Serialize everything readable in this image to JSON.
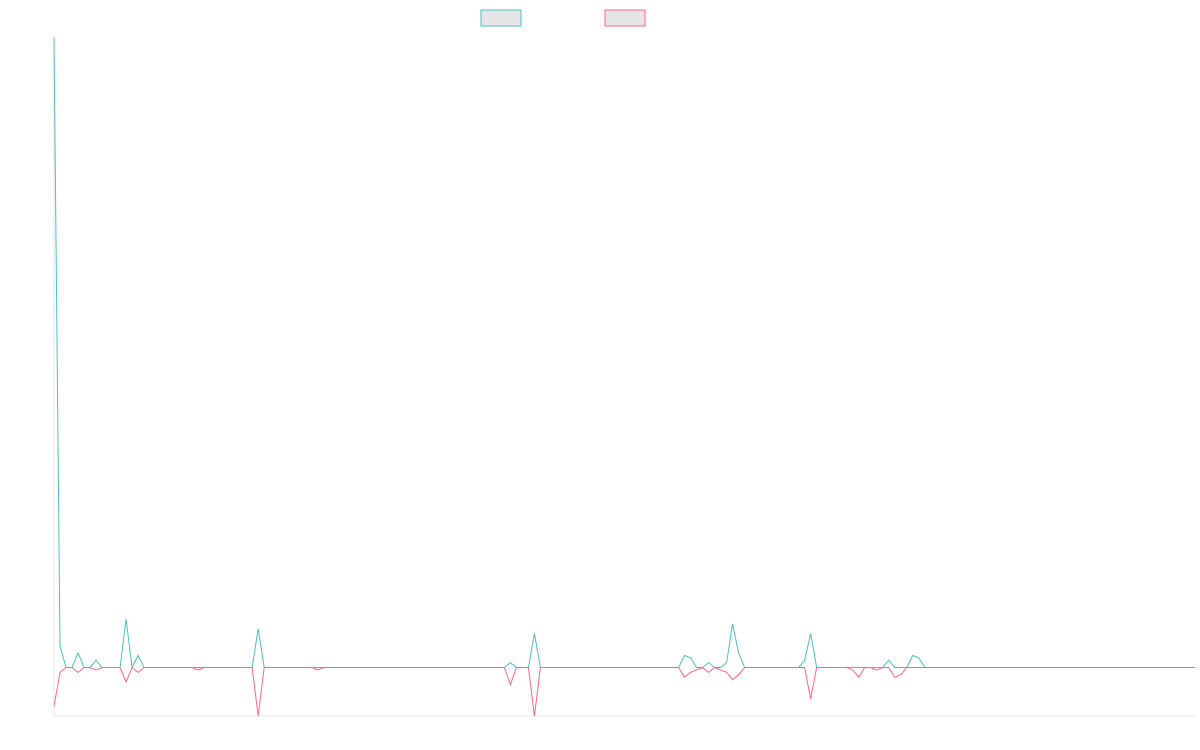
{
  "chart_data": {
    "type": "line",
    "title": "",
    "xlabel": "",
    "ylabel": "",
    "grid": false,
    "legend": "top-center",
    "ylim": [
      -20,
      260
    ],
    "series": [
      {
        "name": "",
        "color": "#4bc0c0",
        "values": [
          260,
          9,
          0,
          0,
          6,
          0,
          0,
          3,
          0,
          0,
          0,
          0,
          20,
          0,
          5,
          0,
          0,
          0,
          0,
          0,
          0,
          0,
          0,
          0,
          0,
          0,
          0,
          0,
          0,
          0,
          0,
          0,
          0,
          0,
          16,
          0,
          0,
          0,
          0,
          0,
          0,
          0,
          0,
          0,
          0,
          0,
          0,
          0,
          0,
          0,
          0,
          0,
          0,
          0,
          0,
          0,
          0,
          0,
          0,
          0,
          0,
          0,
          0,
          0,
          0,
          0,
          0,
          0,
          0,
          0,
          0,
          0,
          0,
          0,
          0,
          0,
          2,
          0,
          0,
          0,
          14,
          0,
          0,
          0,
          0,
          0,
          0,
          0,
          0,
          0,
          0,
          0,
          0,
          0,
          0,
          0,
          0,
          0,
          0,
          0,
          0,
          0,
          0,
          0,
          0,
          5,
          4,
          0,
          0,
          2,
          0,
          0,
          2,
          18,
          6,
          0,
          0,
          0,
          0,
          0,
          0,
          0,
          0,
          0,
          0,
          3,
          14,
          0,
          0,
          0,
          0,
          0,
          0,
          0,
          0,
          0,
          0,
          0,
          0,
          3,
          0,
          0,
          0,
          5,
          4,
          0,
          0,
          0,
          0,
          0,
          0,
          0,
          0,
          0,
          0,
          0,
          0,
          0,
          0,
          0,
          0,
          0,
          0,
          0,
          0,
          0,
          0,
          0,
          0,
          0,
          0,
          0,
          0,
          0,
          0,
          0,
          0,
          0,
          0,
          0,
          0,
          0,
          0,
          0,
          0,
          0,
          0,
          0,
          0,
          0,
          0
        ]
      },
      {
        "name": "",
        "color": "#ff6384",
        "values": [
          -16,
          -2,
          0,
          0,
          -2,
          0,
          0,
          -1,
          0,
          0,
          0,
          0,
          -6,
          0,
          -2,
          0,
          0,
          0,
          0,
          0,
          0,
          0,
          0,
          0,
          -1,
          0,
          0,
          0,
          0,
          0,
          0,
          0,
          0,
          0,
          -20,
          0,
          0,
          0,
          0,
          0,
          0,
          0,
          0,
          0,
          -1,
          0,
          0,
          0,
          0,
          0,
          0,
          0,
          0,
          0,
          0,
          0,
          0,
          0,
          0,
          0,
          0,
          0,
          0,
          0,
          0,
          0,
          0,
          0,
          0,
          0,
          0,
          0,
          0,
          0,
          0,
          0,
          -7,
          0,
          0,
          0,
          -20,
          0,
          0,
          0,
          0,
          0,
          0,
          0,
          0,
          0,
          0,
          0,
          0,
          0,
          0,
          0,
          0,
          0,
          0,
          0,
          0,
          0,
          0,
          0,
          0,
          -4,
          -2,
          -1,
          0,
          -2,
          0,
          -1,
          -2,
          -5,
          -3,
          0,
          0,
          0,
          0,
          0,
          0,
          0,
          0,
          0,
          0,
          0,
          -13,
          0,
          0,
          0,
          0,
          0,
          0,
          -1,
          -4,
          0,
          0,
          -1,
          0,
          0,
          -4,
          -3,
          0,
          0,
          0,
          0,
          0,
          0,
          0,
          0,
          0,
          0,
          0,
          0,
          0,
          0,
          0,
          0,
          0,
          0,
          0,
          0,
          0,
          0,
          0,
          0,
          0,
          0,
          0,
          0,
          0,
          0,
          0,
          0,
          0,
          0,
          0,
          0,
          0,
          0,
          0,
          0,
          0,
          0,
          0,
          0,
          0,
          0,
          0,
          0,
          0
        ]
      }
    ]
  }
}
